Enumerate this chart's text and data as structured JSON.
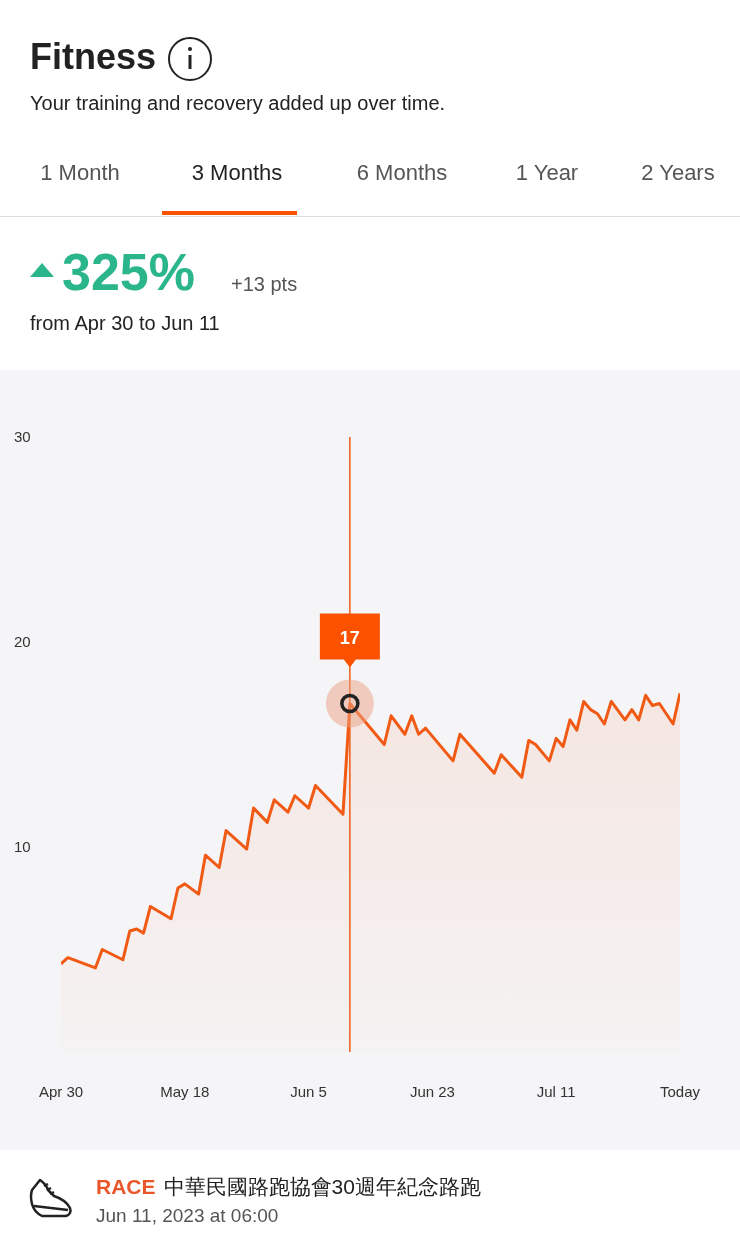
{
  "chart_data": {
    "type": "area",
    "title": "Fitness",
    "subtitle": "Your training and recovery added up over time.",
    "x": [
      "2023-04-30",
      "2023-05-01",
      "2023-05-05",
      "2023-05-06",
      "2023-05-09",
      "2023-05-10",
      "2023-05-11",
      "2023-05-12",
      "2023-05-13",
      "2023-05-16",
      "2023-05-17",
      "2023-05-18",
      "2023-05-20",
      "2023-05-21",
      "2023-05-23",
      "2023-05-24",
      "2023-05-27",
      "2023-05-28",
      "2023-05-30",
      "2023-05-31",
      "2023-06-02",
      "2023-06-03",
      "2023-06-05",
      "2023-06-06",
      "2023-06-10",
      "2023-06-11",
      "2023-06-16",
      "2023-06-17",
      "2023-06-19",
      "2023-06-20",
      "2023-06-21",
      "2023-06-22",
      "2023-06-26",
      "2023-06-27",
      "2023-07-02",
      "2023-07-03",
      "2023-07-06",
      "2023-07-07",
      "2023-07-08",
      "2023-07-10",
      "2023-07-11",
      "2023-07-12",
      "2023-07-13",
      "2023-07-14",
      "2023-07-15",
      "2023-07-16",
      "2023-07-17",
      "2023-07-18",
      "2023-07-19",
      "2023-07-21",
      "2023-07-22",
      "2023-07-23",
      "2023-07-24",
      "2023-07-25",
      "2023-07-26",
      "2023-07-28",
      "2023-07-29"
    ],
    "series": [
      {
        "color": "#f05a14",
        "value_labels": [
          null,
          null,
          null,
          null,
          null,
          null,
          null,
          null,
          null,
          null,
          null,
          null,
          null,
          null,
          null,
          null,
          null,
          null,
          null,
          null,
          null,
          null,
          null,
          null,
          null,
          "17",
          null,
          null,
          null,
          null,
          null,
          null,
          null,
          null,
          null,
          null,
          null,
          null,
          null,
          null,
          null,
          null,
          null,
          null,
          null,
          null,
          null,
          null,
          null,
          null,
          null,
          null,
          null,
          null,
          null,
          null,
          null
        ],
        "values": [
          4.3,
          4.6,
          4.1,
          5.0,
          4.5,
          5.9,
          6.0,
          5.8,
          7.1,
          6.5,
          8.0,
          8.2,
          7.7,
          9.6,
          9.0,
          10.8,
          9.9,
          11.9,
          11.2,
          12.3,
          11.7,
          12.5,
          11.9,
          13.0,
          11.6,
          17,
          15.0,
          16.4,
          15.5,
          16.4,
          15.5,
          15.8,
          14.2,
          15.5,
          13.6,
          14.5,
          13.4,
          15.2,
          15.0,
          14.2,
          15.3,
          14.9,
          16.2,
          15.7,
          17.1,
          16.7,
          16.5,
          16.0,
          17.1,
          16.2,
          16.7,
          16.2,
          17.4,
          16.9,
          17.0,
          16.0,
          17.5
        ]
      }
    ],
    "xlim": [
      "2023-04-30",
      "2023-07-29"
    ],
    "xticks": [
      {
        "value": "2023-04-30",
        "label": "Apr 30"
      },
      {
        "value": "2023-05-18",
        "label": "May 18"
      },
      {
        "value": "2023-06-05",
        "label": "Jun 5"
      },
      {
        "value": "2023-06-23",
        "label": "Jun 23"
      },
      {
        "value": "2023-07-11",
        "label": "Jul 11"
      },
      {
        "value": "2023-07-29",
        "label": "Today"
      }
    ],
    "ylim": [
      0,
      30
    ],
    "yticks": [
      10,
      20,
      30
    ],
    "ref_lines": [
      {
        "axis": "x",
        "value": "2023-06-11",
        "color": "#f05a14"
      }
    ],
    "annotations": [
      "1 Month",
      "3 Months",
      "6 Months",
      "1 Year",
      "2 Years",
      "325%",
      "+13 pts",
      "from Apr 30 to Jun 11",
      "RACE",
      "中華民國路跑協會30週年紀念路跑",
      "Jun 11, 2023 at 06:00"
    ]
  }
}
